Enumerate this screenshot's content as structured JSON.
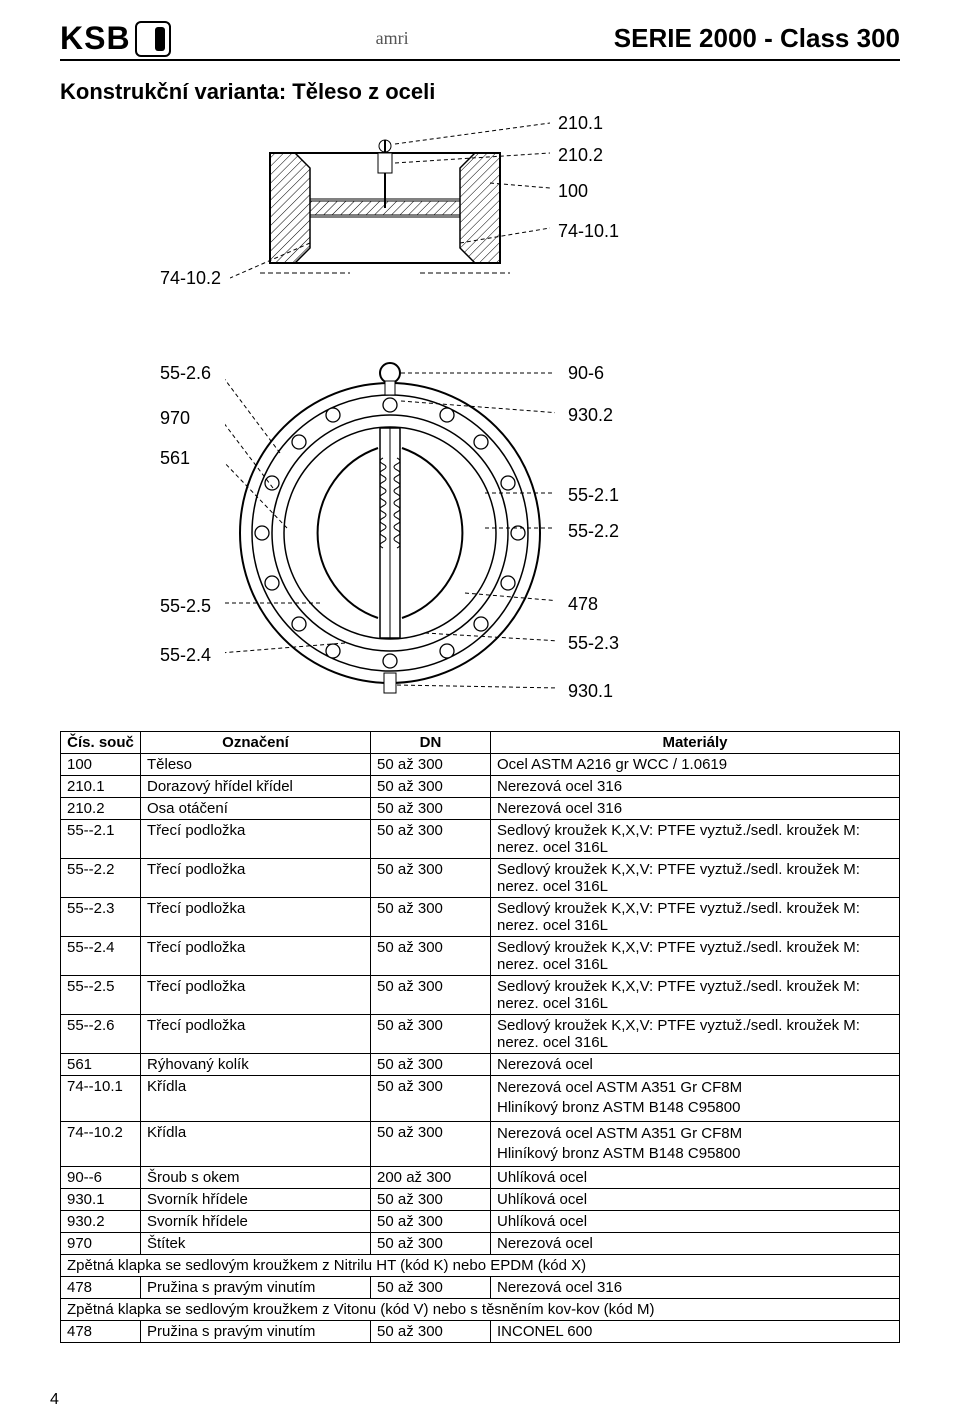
{
  "header": {
    "logo_text": "KSB",
    "brand_center": "amri",
    "series": "SERIE 2000",
    "class": "Class 300"
  },
  "subtitle": "Konstrukční varianta: Těleso z oceli",
  "diagram1_labels": {
    "l1": "210.1",
    "l2": "210.2",
    "l3": "100",
    "l4": "74-10.1",
    "l5": "74-10.2"
  },
  "diagram2_labels": {
    "l1": "55-2.6",
    "l2": "970",
    "l3": "561",
    "l4": "55-2.5",
    "l5": "55-2.4",
    "r1": "90-6",
    "r2": "930.2",
    "r3": "55-2.1",
    "r4": "55-2.2",
    "r5": "478",
    "r6": "55-2.3",
    "r7": "930.1"
  },
  "table": {
    "headers": {
      "c1": "Čís. souč",
      "c2": "Označení",
      "c3": "DN",
      "c4": "Materiály"
    },
    "rows": [
      {
        "n": "100",
        "name": "Těleso",
        "dn": "50 až 300",
        "mat": "Ocel ASTM A216 gr WCC / 1.0619"
      },
      {
        "n": "210.1",
        "name": "Dorazový hřídel křídel",
        "dn": "50 až 300",
        "mat": "Nerezová ocel 316"
      },
      {
        "n": "210.2",
        "name": "Osa otáčení",
        "dn": "50 až 300",
        "mat": "Nerezová ocel 316"
      },
      {
        "n": "55--2.1",
        "name": "Třecí podložka",
        "dn": "50 až 300",
        "mat": "Sedlový kroužek K,X,V: PTFE vyztuž./sedl. kroužek M: nerez. ocel 316L"
      },
      {
        "n": "55--2.2",
        "name": "Třecí podložka",
        "dn": "50 až 300",
        "mat": "Sedlový kroužek K,X,V: PTFE vyztuž./sedl. kroužek M: nerez. ocel 316L"
      },
      {
        "n": "55--2.3",
        "name": "Třecí podložka",
        "dn": "50 až 300",
        "mat": "Sedlový kroužek K,X,V: PTFE vyztuž./sedl. kroužek M: nerez. ocel 316L"
      },
      {
        "n": "55--2.4",
        "name": "Třecí podložka",
        "dn": "50 až 300",
        "mat": "Sedlový kroužek K,X,V: PTFE vyztuž./sedl. kroužek M: nerez. ocel 316L"
      },
      {
        "n": "55--2.5",
        "name": "Třecí podložka",
        "dn": "50 až 300",
        "mat": "Sedlový kroužek K,X,V: PTFE vyztuž./sedl. kroužek M: nerez. ocel 316L"
      },
      {
        "n": "55--2.6",
        "name": "Třecí podložka",
        "dn": "50 až 300",
        "mat": "Sedlový kroužek K,X,V: PTFE vyztuž./sedl. kroužek M: nerez. ocel 316L"
      },
      {
        "n": "561",
        "name": "Rýhovaný kolík",
        "dn": "50 až 300",
        "mat": "Nerezová ocel"
      },
      {
        "n": "74--10.1",
        "name": "Křídla",
        "dn": "50 až 300",
        "mat": "Nerezová ocel ASTM A351 Gr CF8M\nHliníkový bronz ASTM B148 C95800"
      },
      {
        "n": "74--10.2",
        "name": "Křídla",
        "dn": "50 až 300",
        "mat": "Nerezová ocel ASTM A351 Gr CF8M\nHliníkový bronz ASTM B148 C95800"
      },
      {
        "n": "90--6",
        "name": "Šroub s okem",
        "dn": "200 až 300",
        "mat": "Uhlíková ocel"
      },
      {
        "n": "930.1",
        "name": "Svorník hřídele",
        "dn": "50 až 300",
        "mat": "Uhlíková ocel"
      },
      {
        "n": "930.2",
        "name": "Svorník hřídele",
        "dn": "50 až 300",
        "mat": "Uhlíková ocel"
      },
      {
        "n": "970",
        "name": "Štítek",
        "dn": "50 až 300",
        "mat": "Nerezová ocel"
      }
    ],
    "note1": "Zpětná klapka se sedlovým kroužkem z Nitrilu HT (kód K) nebo EPDM (kód X)",
    "row_after_note1": {
      "n": "478",
      "name": "Pružina s pravým vinutím",
      "dn": "50 až 300",
      "mat": "Nerezová ocel 316"
    },
    "note2": "Zpětná klapka se sedlovým kroužkem z Vitonu (kód V) nebo s těsněním kov-kov (kód M)",
    "row_after_note2": {
      "n": "478",
      "name": "Pružina s pravým vinutím",
      "dn": "50 až 300",
      "mat": "INCONEL 600"
    }
  },
  "page_number": "4",
  "colors": {
    "line": "#000000",
    "bg": "#ffffff",
    "hatch": "#000000",
    "dash": "#000000"
  }
}
